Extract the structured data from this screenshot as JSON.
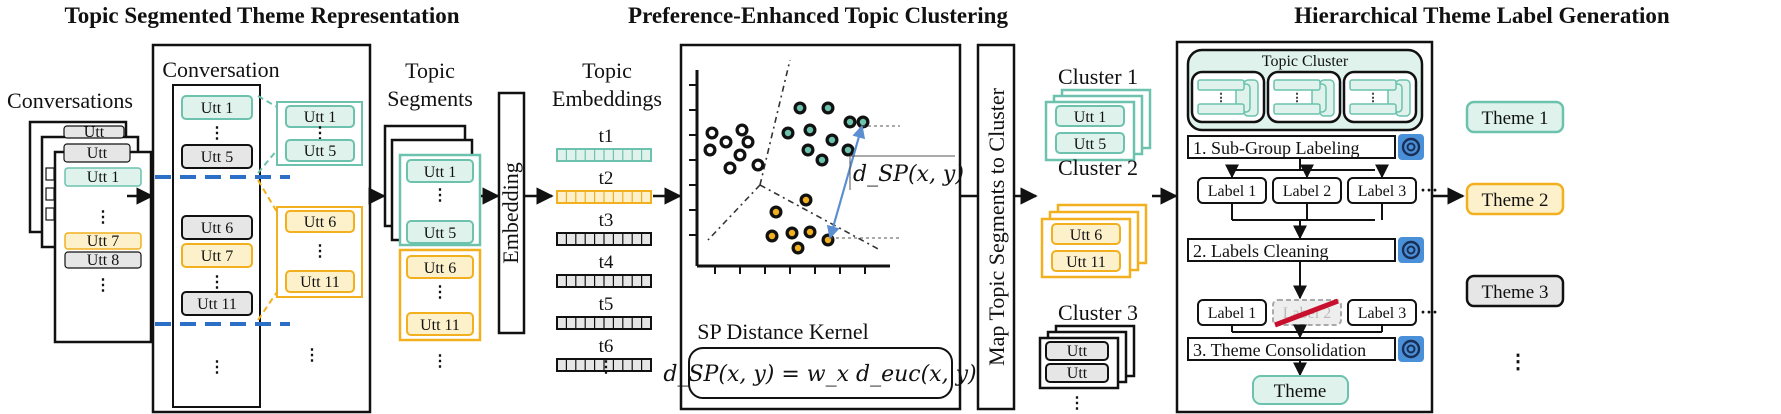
{
  "colors": {
    "teal": "#6cc2ad",
    "teal_fill": "#dff3ec",
    "yellow": "#f2b01e",
    "yellow_fill": "#fdf1cc",
    "gray_fill": "#e6e6e6",
    "dash_blue": "#2c6fc7",
    "arrow": "#111111",
    "strike_red": "#c8102e"
  },
  "sections": {
    "seg_title": "Topic Segmented Theme Representation",
    "cluster_title": "Preference-Enhanced Topic Clustering",
    "label_title": "Hierarchical Theme Label Generation"
  },
  "segmentation": {
    "conversations_label": "Conversations",
    "conversation_label": "Conversation",
    "topic_segments_label_1": "Topic",
    "topic_segments_label_2": "Segments",
    "stack_utts": [
      "Utt",
      "Utt",
      "Utt 1",
      "Utt 7",
      "Utt 8"
    ],
    "conv_utts": [
      "Utt 1",
      "Utt 5",
      "Utt 6",
      "Utt 7",
      "Utt 11"
    ],
    "seg_teal": [
      "Utt 1",
      "Utt 5"
    ],
    "seg_yellow": [
      "Utt 6",
      "Utt 11"
    ],
    "stack_seg_teal": [
      "Utt 1",
      "Utt 5"
    ],
    "stack_seg_yellow": [
      "Utt 6",
      "Utt 11"
    ],
    "ellipsis": "⋮"
  },
  "embedding": {
    "box_label": "Embedding",
    "topic_emb_label_1": "Topic",
    "topic_emb_label_2": "Embeddings",
    "vectors": [
      "t1",
      "t2",
      "t3",
      "t4",
      "t5",
      "t6"
    ]
  },
  "clustering": {
    "kernel_label": "SP Distance Kernel",
    "formula": "d_SP(x, y) = w_x d_euc(x, y)",
    "plot_annotation": "d_SP(x, y)",
    "map_label": "Map Topic Segments to Cluster",
    "clusters": [
      {
        "name": "Cluster 1",
        "utts": [
          "Utt 1",
          "Utt 5"
        ]
      },
      {
        "name": "Cluster 2",
        "utts": [
          "Utt 6",
          "Utt 11"
        ]
      },
      {
        "name": "Cluster 3",
        "utts": [
          "Utt",
          "Utt"
        ]
      }
    ]
  },
  "labeling": {
    "topic_cluster": "Topic Cluster",
    "step1": "1. Sub-Group Labeling",
    "step2": "2. Labels Cleaning",
    "step3": "3. Theme Consolidation",
    "labels_row1": [
      "Label 1",
      "Label 2",
      "Label 3"
    ],
    "labels_row2": [
      "Label 1",
      "Label 2",
      "Label 3"
    ],
    "theme_box": "Theme",
    "themes": [
      "Theme 1",
      "Theme 2",
      "Theme 3"
    ]
  }
}
